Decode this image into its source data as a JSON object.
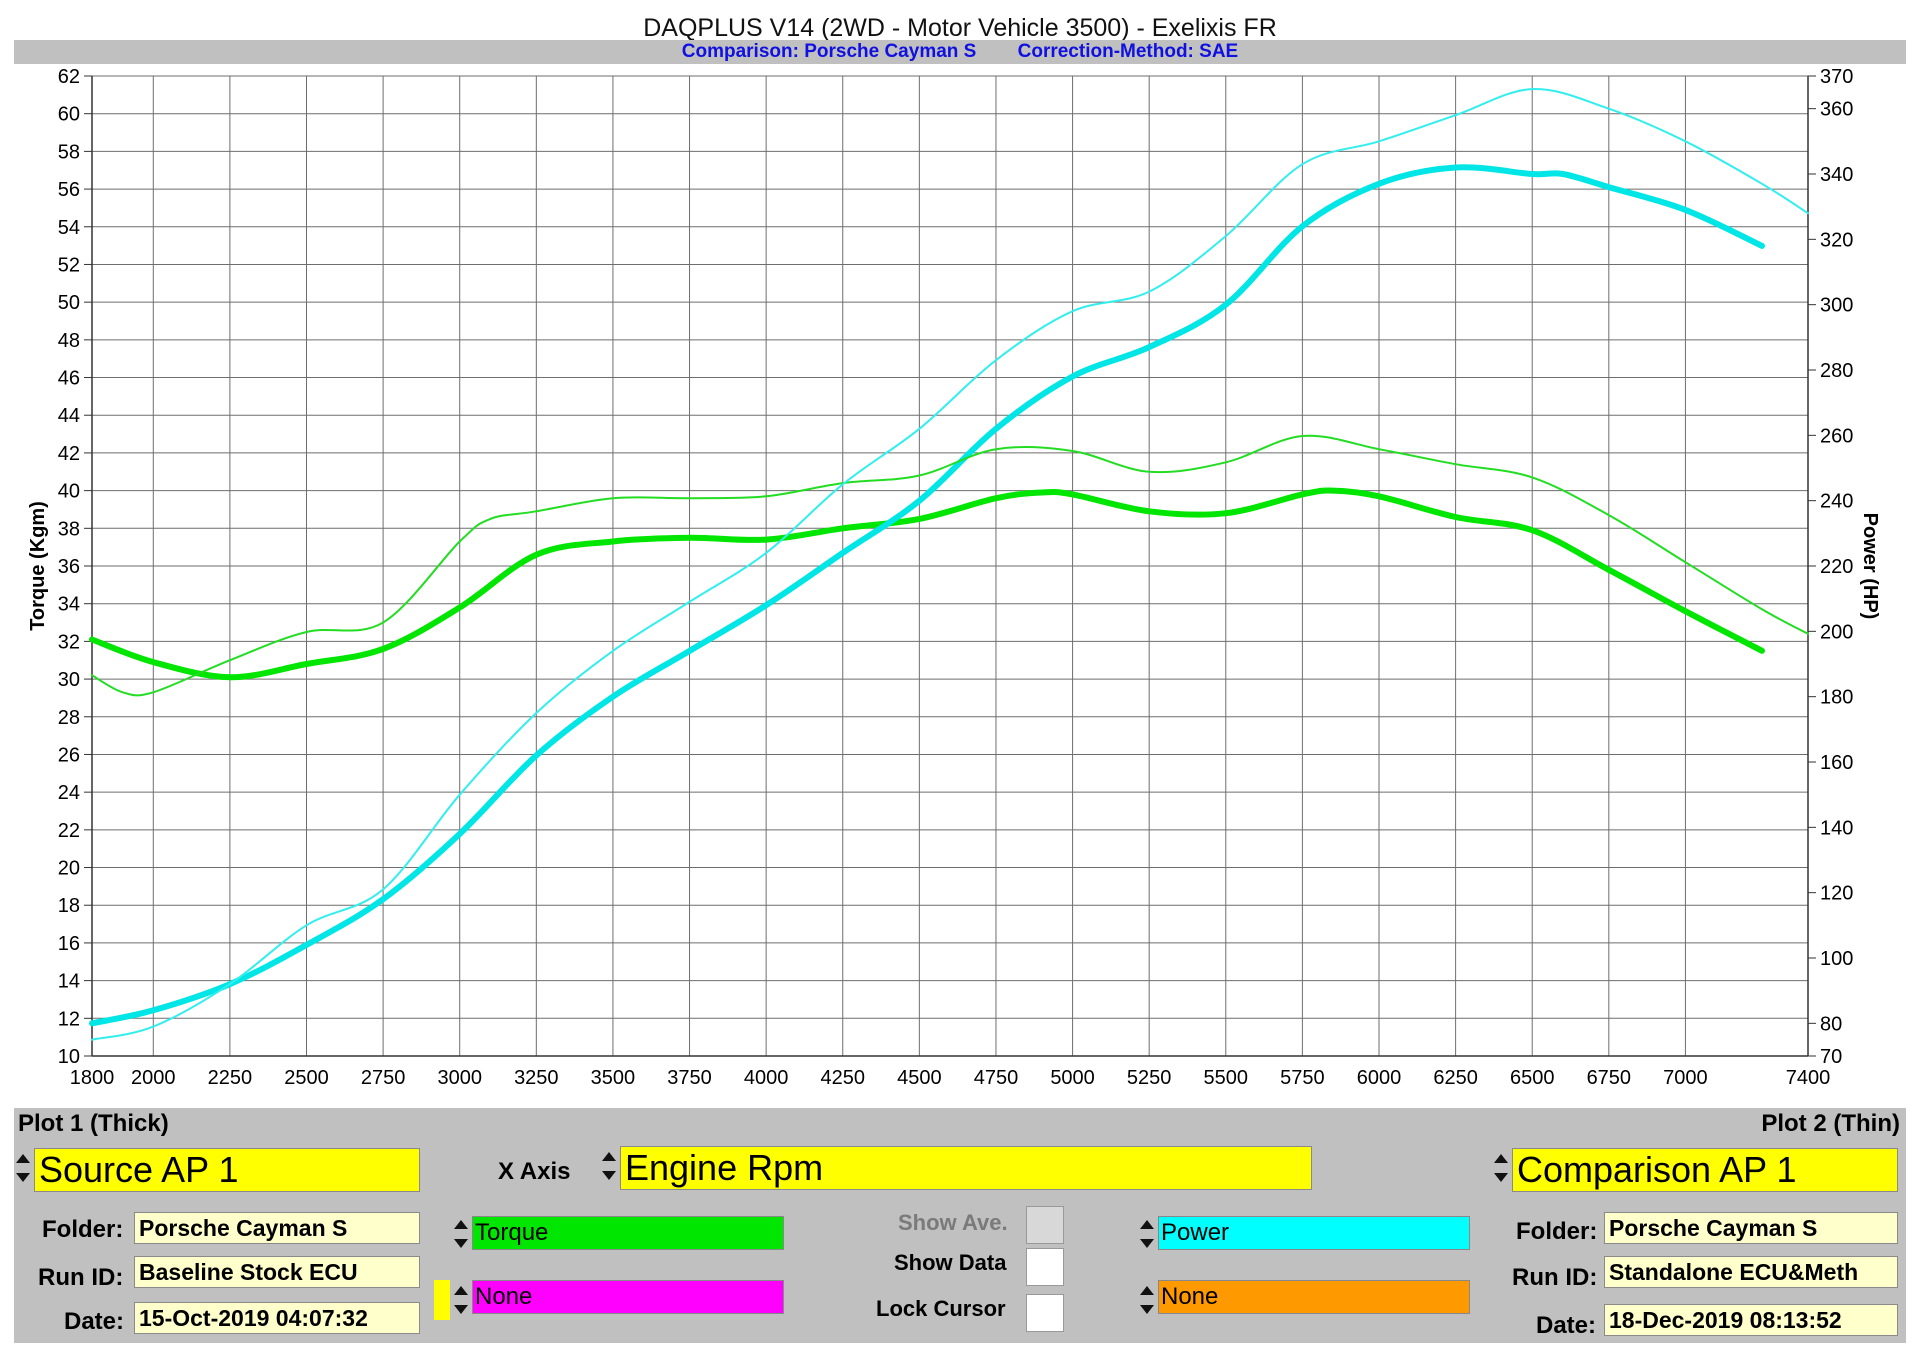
{
  "header": {
    "title": "DAQPLUS V14 (2WD - Motor Vehicle 3500) - Exelixis FR",
    "comparison": "Comparison: Porsche Cayman S",
    "correction": "Correction-Method: SAE"
  },
  "chart_data": {
    "type": "line",
    "xlabel": "",
    "ylabel": "Torque (Kgm)",
    "y2label": "Power (HP)",
    "xlim": [
      1800,
      7400
    ],
    "ylim": [
      10,
      62
    ],
    "y2lim": [
      70,
      370
    ],
    "x_ticks": [
      1800,
      2000,
      2250,
      2500,
      2750,
      3000,
      3250,
      3500,
      3750,
      4000,
      4250,
      4500,
      4750,
      5000,
      5250,
      5500,
      5750,
      6000,
      6250,
      6500,
      6750,
      7000,
      7400
    ],
    "y_ticks": [
      10,
      12,
      14,
      16,
      18,
      20,
      22,
      24,
      26,
      28,
      30,
      32,
      34,
      36,
      38,
      40,
      42,
      44,
      46,
      48,
      50,
      52,
      54,
      56,
      58,
      60,
      62
    ],
    "y2_ticks": [
      70,
      80,
      100,
      120,
      140,
      160,
      180,
      200,
      220,
      240,
      260,
      280,
      300,
      320,
      340,
      360,
      370
    ],
    "grid": true,
    "series": [
      {
        "name": "Torque",
        "plot": "Plot 1 (Thick)",
        "axis": "left",
        "color": "#00e600",
        "width": 6,
        "x": [
          1800,
          2000,
          2250,
          2500,
          2750,
          3000,
          3250,
          3500,
          3750,
          4000,
          4250,
          4500,
          4750,
          4900,
          5000,
          5250,
          5500,
          5750,
          5850,
          6000,
          6250,
          6500,
          6750,
          7000,
          7250
        ],
        "y": [
          32.1,
          30.9,
          30.1,
          30.8,
          31.6,
          33.8,
          36.6,
          37.3,
          37.5,
          37.4,
          38.0,
          38.5,
          39.6,
          39.9,
          39.8,
          38.9,
          38.8,
          39.8,
          40.0,
          39.7,
          38.6,
          37.9,
          35.8,
          33.6,
          31.5
        ]
      },
      {
        "name": "Power",
        "plot": "Plot 1 (Thick)",
        "axis": "right",
        "color": "#00e6e6",
        "width": 6,
        "x": [
          1800,
          2000,
          2250,
          2500,
          2750,
          3000,
          3250,
          3500,
          3750,
          4000,
          4250,
          4500,
          4750,
          5000,
          5250,
          5500,
          5750,
          6000,
          6250,
          6500,
          6600,
          6750,
          7000,
          7250
        ],
        "y": [
          80,
          84,
          92,
          104,
          118,
          138,
          162,
          180,
          194,
          208,
          224,
          240,
          262,
          278,
          287,
          300,
          324,
          337,
          342,
          340,
          340,
          336,
          329,
          318
        ]
      },
      {
        "name": "Torque",
        "plot": "Plot 2 (Thin)",
        "axis": "left",
        "color": "#22dd22",
        "width": 2,
        "x": [
          1800,
          1900,
          2000,
          2250,
          2500,
          2750,
          3000,
          3100,
          3250,
          3500,
          3750,
          4000,
          4250,
          4500,
          4750,
          5000,
          5250,
          5500,
          5750,
          6000,
          6250,
          6500,
          6750,
          7000,
          7250,
          7400
        ],
        "y": [
          30.2,
          29.3,
          29.3,
          31.0,
          32.5,
          33.0,
          37.3,
          38.5,
          38.9,
          39.6,
          39.6,
          39.7,
          40.4,
          40.8,
          42.2,
          42.1,
          41.0,
          41.5,
          42.9,
          42.2,
          41.4,
          40.7,
          38.7,
          36.2,
          33.7,
          32.4
        ]
      },
      {
        "name": "Power",
        "plot": "Plot 2 (Thin)",
        "axis": "right",
        "color": "#33eeee",
        "width": 2,
        "x": [
          1800,
          2000,
          2250,
          2500,
          2750,
          3000,
          3250,
          3500,
          3750,
          4000,
          4250,
          4500,
          4750,
          5000,
          5250,
          5500,
          5750,
          6000,
          6250,
          6500,
          6750,
          7000,
          7250,
          7400
        ],
        "y": [
          75,
          79,
          92,
          110,
          121,
          150,
          175,
          194,
          209,
          224,
          245,
          262,
          283,
          298,
          304,
          321,
          343,
          350,
          358,
          366,
          360,
          350,
          337,
          328
        ]
      }
    ]
  },
  "panel": {
    "plot1_label": "Plot 1 (Thick)",
    "plot2_label": "Plot 2 (Thin)",
    "source": "Source AP 1",
    "comparison": "Comparison AP 1",
    "x_axis_label": "X Axis",
    "x_axis_value": "Engine Rpm",
    "folder_label": "Folder:",
    "runid_label": "Run ID:",
    "date_label": "Date:",
    "plot1_folder": "Porsche Cayman S",
    "plot1_runid": "Baseline Stock ECU",
    "plot1_date": "15-Oct-2019 04:07:32",
    "plot2_folder": "Porsche Cayman S",
    "plot2_runid": "Standalone ECU&Meth",
    "plot2_date": "18-Dec-2019 08:13:52",
    "left_top": "Torque",
    "left_bottom": "None",
    "right_top": "Power",
    "right_bottom": "None",
    "show_ave": "Show Ave.",
    "show_data": "Show Data",
    "lock_cursor": "Lock Cursor",
    "colors": {
      "torque": "#00e600",
      "magenta": "#ff00ff",
      "power": "#00ffff",
      "orange": "#ff9900",
      "yellow": "#ffff00",
      "cream": "#ffffcc"
    }
  }
}
